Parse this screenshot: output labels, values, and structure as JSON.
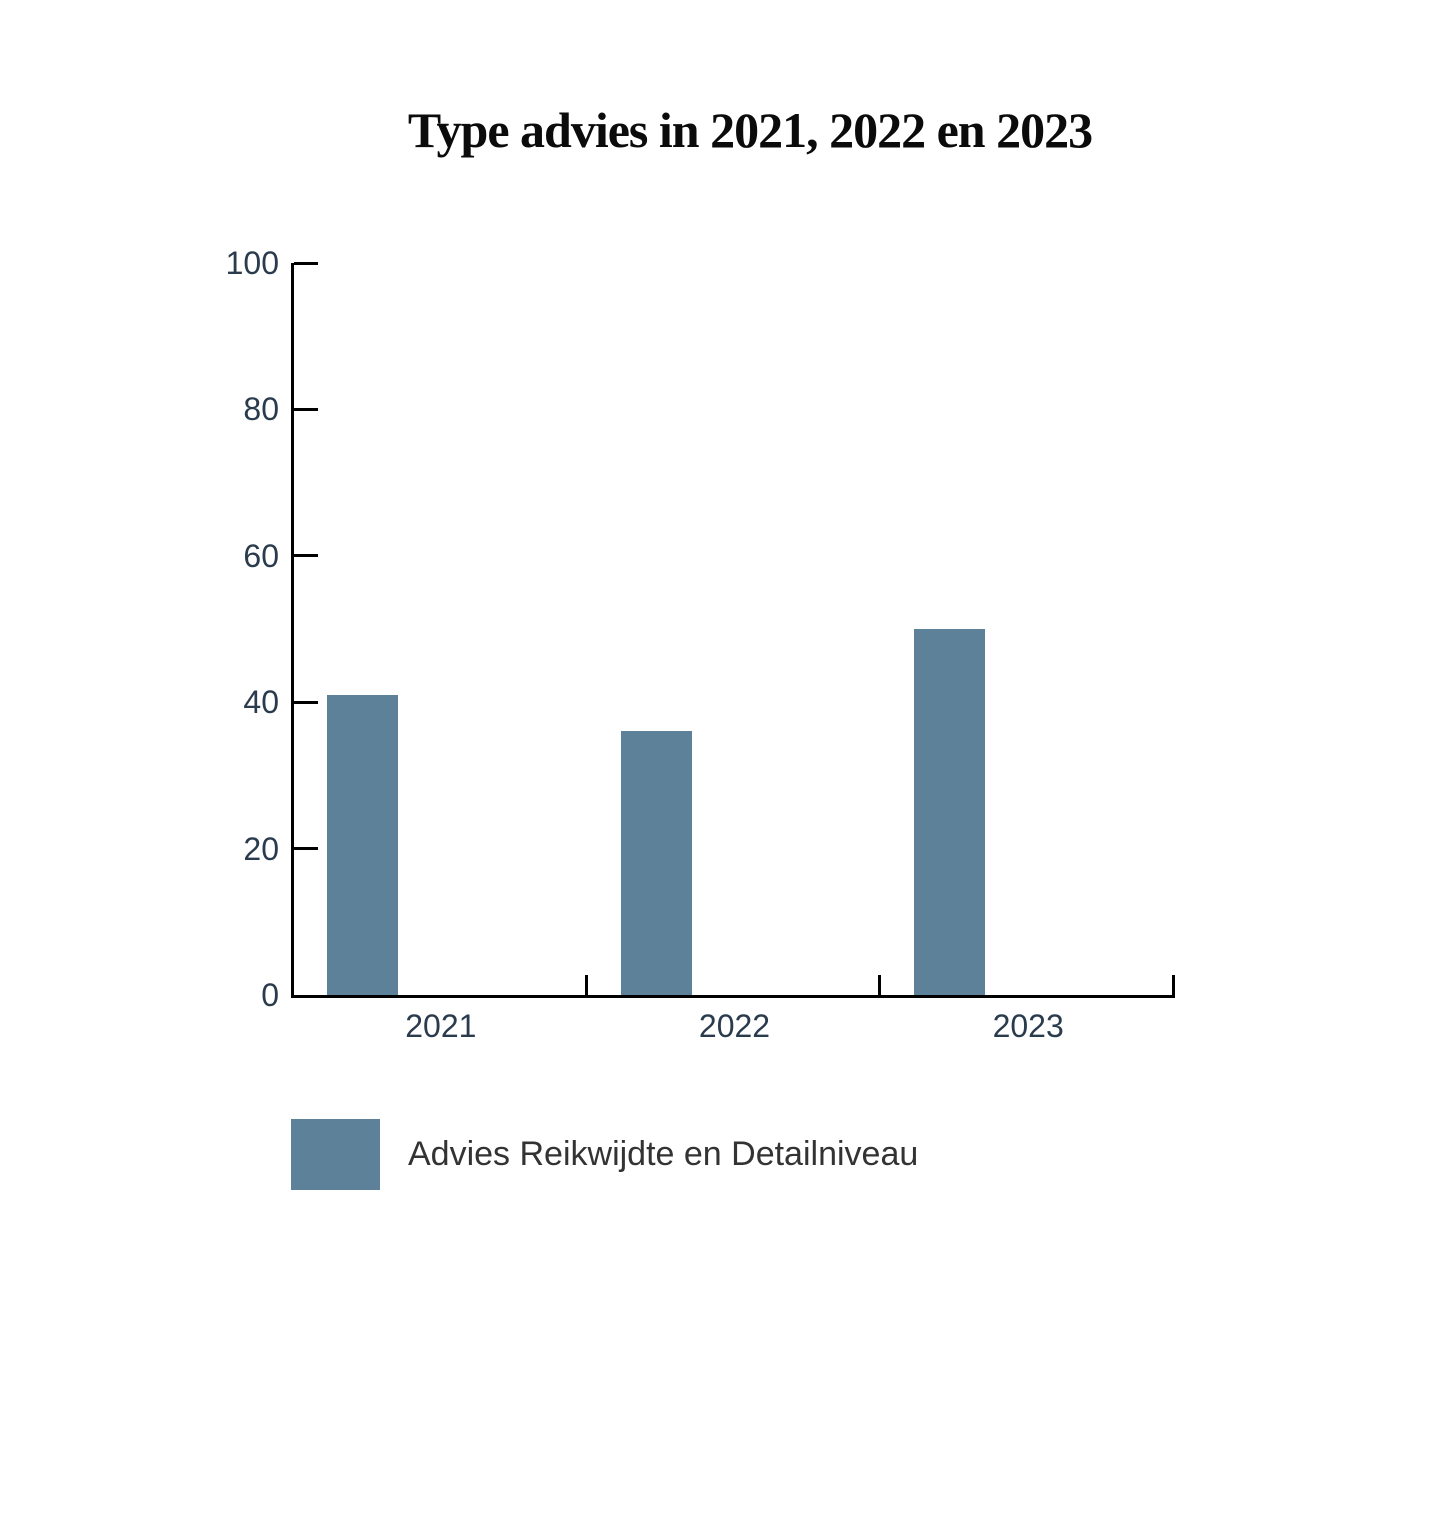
{
  "chart": {
    "title": "Type advies in 2021, 2022 en 2023"
  },
  "legend": {
    "label": "Advies Reikwijdte en Detailniveau",
    "swatch_color": "#5c8198"
  },
  "colors": {
    "bar": "#5c8198",
    "axis": "#000000",
    "tick_label": "#2a3b4d",
    "title": "#0b0b0b",
    "legend_text": "#333333",
    "background": "#ffffff"
  },
  "chart_data": {
    "type": "bar",
    "title": "Type advies in 2021, 2022 en 2023",
    "categories": [
      "2021",
      "2022",
      "2023"
    ],
    "series": [
      {
        "name": "Advies Reikwijdte en Detailniveau",
        "values": [
          41,
          36,
          50
        ]
      }
    ],
    "xlabel": "",
    "ylabel": "",
    "ylim": [
      0,
      100
    ],
    "yticks": [
      0,
      20,
      40,
      60,
      80,
      100
    ],
    "grid": false,
    "tick_direction": "in",
    "legend_position": "bottom-left"
  }
}
